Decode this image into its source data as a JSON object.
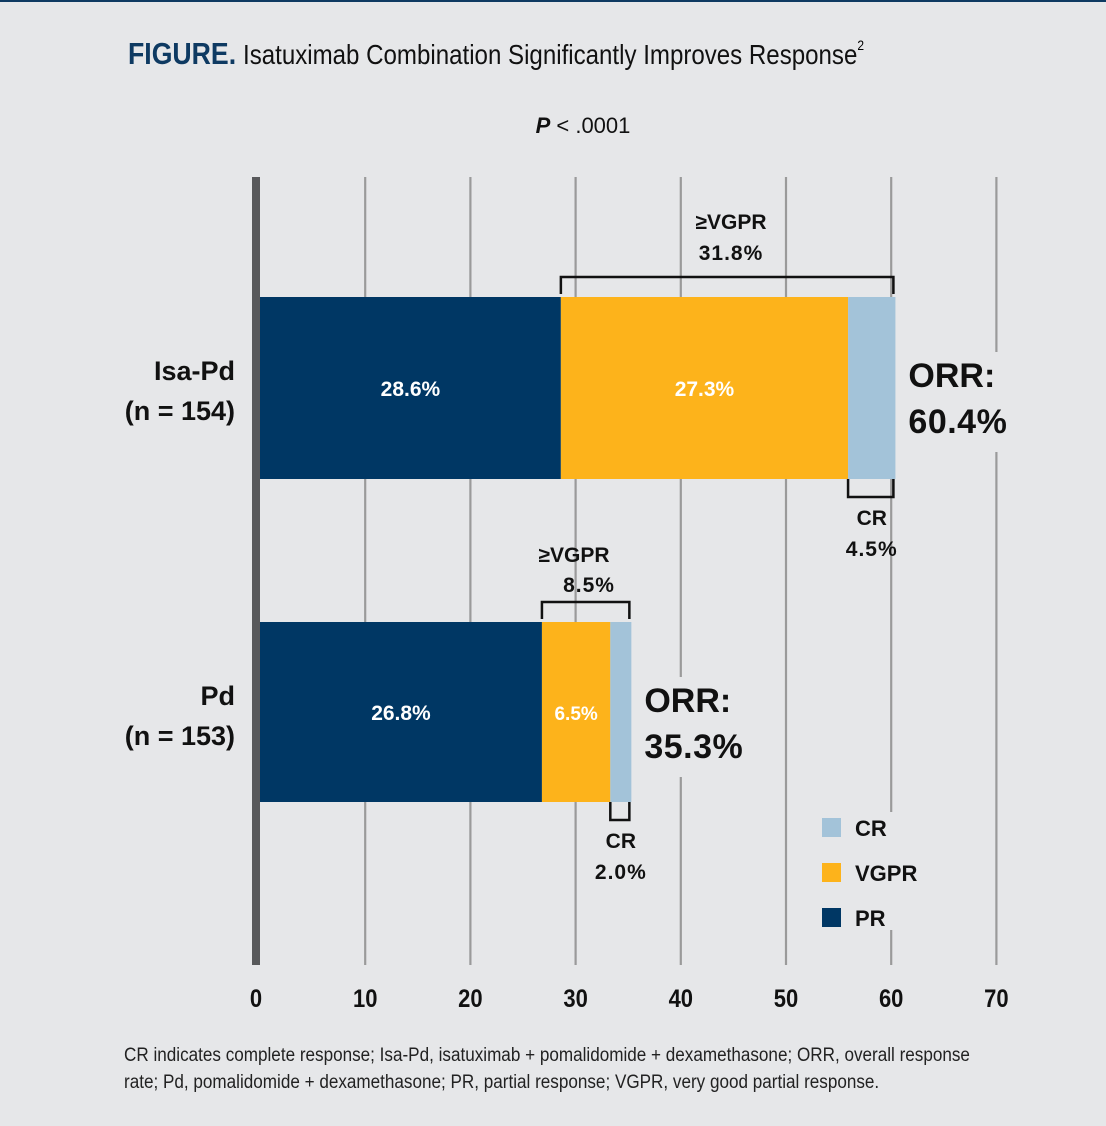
{
  "header": {
    "figure_label": "FIGURE.",
    "title": "Isatuximab Combination Significantly Improves Response",
    "superscript": "2",
    "pvalue_italic": "P",
    "pvalue_rest": " < .0001"
  },
  "chart_data": {
    "type": "bar",
    "orientation": "horizontal",
    "stacked": true,
    "title": "Isatuximab Combination Significantly Improves Response",
    "subtitle": "P < .0001",
    "xlabel": "",
    "ylabel": "",
    "xlim": [
      0,
      70
    ],
    "xticks": [
      0,
      10,
      20,
      30,
      40,
      50,
      60,
      70
    ],
    "grid": true,
    "legend_position": "bottom-right",
    "categories": [
      {
        "name": "Isa-Pd",
        "n_label": "(n = 154)"
      },
      {
        "name": "Pd",
        "n_label": "(n = 153)"
      }
    ],
    "series": [
      {
        "name": "PR",
        "color": "#003764",
        "values": [
          28.6,
          26.8
        ],
        "labels": [
          "28.6%",
          "26.8%"
        ]
      },
      {
        "name": "VGPR",
        "color": "#fdb31b",
        "values": [
          27.3,
          6.5
        ],
        "labels": [
          "27.3%",
          "6.5%"
        ]
      },
      {
        "name": "CR",
        "color": "#a3c3d9",
        "values": [
          4.5,
          2.0
        ],
        "labels": [
          "",
          ""
        ]
      }
    ],
    "annotations": [
      {
        "category": "Isa-Pd",
        "vgpr_bracket_title": "≥VGPR",
        "vgpr_bracket_value": "31.8%",
        "cr_title": "CR",
        "cr_value": "4.5%",
        "orr_title": "ORR:",
        "orr_value": "60.4%"
      },
      {
        "category": "Pd",
        "vgpr_bracket_title": "≥VGPR",
        "vgpr_bracket_value": "8.5%",
        "cr_title": "CR",
        "cr_value": "2.0%",
        "orr_title": "ORR:",
        "orr_value": "35.3%"
      }
    ],
    "legend": [
      {
        "name": "CR",
        "color": "#a3c3d9"
      },
      {
        "name": "VGPR",
        "color": "#fdb31b"
      },
      {
        "name": "PR",
        "color": "#003764"
      }
    ]
  },
  "footnote": "CR indicates complete response; Isa-Pd, isatuximab + pomalidomide + dexamethasone; ORR, overall response rate; Pd, pomalidomide + dexamethasone; PR, partial response; VGPR, very good partial response."
}
